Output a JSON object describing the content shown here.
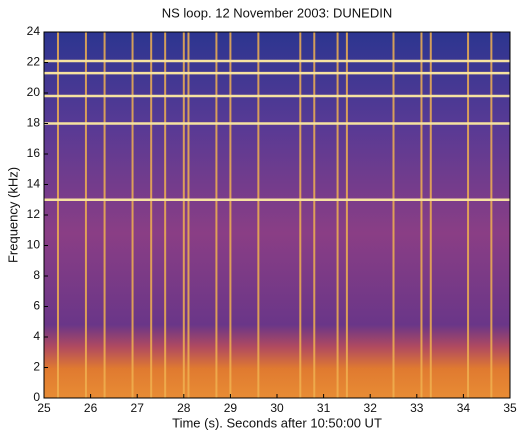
{
  "chart_data": {
    "type": "spectrogram",
    "title": "NS loop. 12 November 2003:  DUNEDIN",
    "xlabel": "Time (s). Seconds after 10:50:00 UT",
    "ylabel": "Frequency (kHz)",
    "xlim": [
      25,
      35
    ],
    "xticks": [
      25,
      26,
      27,
      28,
      29,
      30,
      31,
      32,
      33,
      34,
      35
    ],
    "ylim": [
      0,
      24
    ],
    "yticks": [
      0,
      2,
      4,
      6,
      8,
      10,
      12,
      14,
      16,
      18,
      20,
      22,
      24
    ],
    "tone_frequencies": [
      13,
      18,
      19.8,
      21.3,
      22.1
    ],
    "tone_color": "#f6e2a0",
    "sferic_times": [
      25.3,
      25.9,
      26.3,
      26.9,
      27.3,
      27.6,
      28.0,
      28.1,
      28.7,
      29.0,
      29.6,
      30.5,
      30.8,
      31.3,
      31.5,
      32.5,
      33.1,
      33.3,
      34.1,
      34.6
    ],
    "sferic_color": "#f0b050"
  }
}
